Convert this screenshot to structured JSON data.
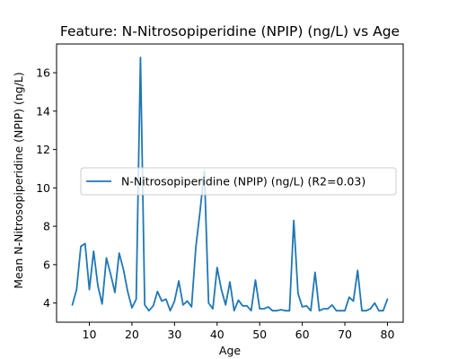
{
  "chart_data": {
    "type": "line",
    "title": "Feature: N-Nitrosopiperidine (NPIP) (ng/L) vs Age",
    "xlabel": "Age",
    "ylabel": "Mean N-Nitrosopiperidine (NPIP) (ng/L)",
    "xlim": [
      2.3,
      83.7
    ],
    "ylim": [
      3.0,
      17.5
    ],
    "xticks": [
      10,
      20,
      30,
      40,
      50,
      60,
      70,
      80
    ],
    "yticks": [
      4,
      6,
      8,
      10,
      12,
      14,
      16
    ],
    "legend_position": "center-right",
    "grid": false,
    "series": [
      {
        "name": "N-Nitrosopiperidine (NPIP) (ng/L) (R2=0.03)",
        "color": "#1f77b4",
        "x": [
          6,
          7,
          8,
          9,
          10,
          11,
          12,
          13,
          14,
          15,
          16,
          17,
          18,
          19,
          20,
          21,
          22,
          23,
          24,
          25,
          26,
          27,
          28,
          29,
          30,
          31,
          32,
          33,
          34,
          35,
          36,
          37,
          38,
          39,
          40,
          41,
          42,
          43,
          44,
          45,
          46,
          47,
          48,
          49,
          50,
          51,
          52,
          53,
          54,
          55,
          56,
          57,
          58,
          59,
          60,
          61,
          62,
          63,
          64,
          65,
          66,
          67,
          68,
          69,
          70,
          71,
          72,
          73,
          74,
          75,
          76,
          77,
          78,
          79,
          80
        ],
        "y": [
          3.9,
          4.7,
          6.95,
          7.1,
          4.7,
          6.7,
          4.9,
          3.95,
          6.35,
          5.5,
          4.55,
          6.6,
          5.75,
          4.6,
          3.75,
          4.2,
          16.8,
          3.9,
          3.6,
          3.85,
          4.6,
          4.1,
          4.2,
          3.6,
          4.1,
          5.15,
          3.9,
          4.1,
          3.8,
          6.9,
          8.8,
          10.9,
          4.0,
          3.7,
          5.85,
          4.7,
          3.9,
          5.1,
          3.6,
          4.15,
          3.85,
          3.85,
          3.6,
          5.2,
          3.7,
          3.7,
          3.8,
          3.6,
          3.6,
          3.65,
          3.6,
          3.6,
          8.3,
          4.5,
          3.8,
          3.85,
          3.6,
          5.6,
          3.6,
          3.7,
          3.7,
          3.9,
          3.6,
          3.6,
          3.6,
          4.3,
          4.1,
          5.7,
          3.6,
          3.6,
          3.7,
          4.0,
          3.6,
          3.6,
          4.2
        ]
      }
    ]
  }
}
